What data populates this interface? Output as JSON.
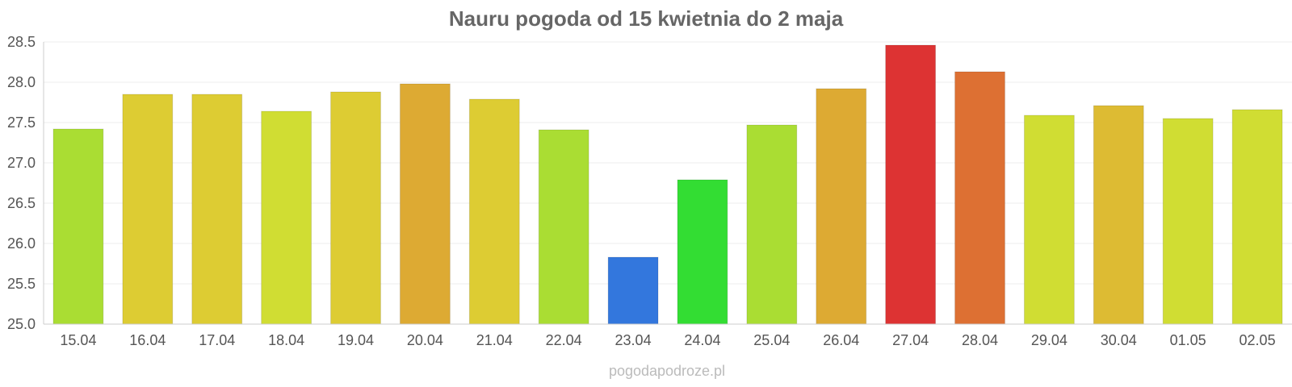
{
  "chart_data": {
    "type": "bar",
    "title": "Nauru pogoda od 15 kwietnia do 2 maja",
    "xlabel": "",
    "ylabel": "",
    "ylim": [
      25.0,
      28.5
    ],
    "yticks": [
      "25.0",
      "25.5",
      "26.0",
      "26.5",
      "27.0",
      "27.5",
      "28.0",
      "28.5"
    ],
    "categories": [
      "15.04",
      "16.04",
      "17.04",
      "18.04",
      "19.04",
      "20.04",
      "21.04",
      "22.04",
      "23.04",
      "24.04",
      "25.04",
      "26.04",
      "27.04",
      "28.04",
      "29.04",
      "30.04",
      "01.05",
      "02.05"
    ],
    "values": [
      27.42,
      27.85,
      27.85,
      27.64,
      27.88,
      27.98,
      27.79,
      27.41,
      25.83,
      26.79,
      27.47,
      27.92,
      28.46,
      28.13,
      27.59,
      27.71,
      27.55,
      27.66
    ],
    "colors": [
      "#aadd33",
      "#ddcc33",
      "#ddcc33",
      "#d0dd33",
      "#ddcc33",
      "#ddaa33",
      "#ddcc33",
      "#aadd33",
      "#3377dd",
      "#33dd33",
      "#aadd33",
      "#ddaa33",
      "#dd3333",
      "#dd7033",
      "#d0dd33",
      "#ddbb33",
      "#d0dd33",
      "#d0dd33"
    ],
    "grid": true,
    "legend": "none"
  },
  "footer": {
    "credit": "pogodapodroze.pl"
  }
}
